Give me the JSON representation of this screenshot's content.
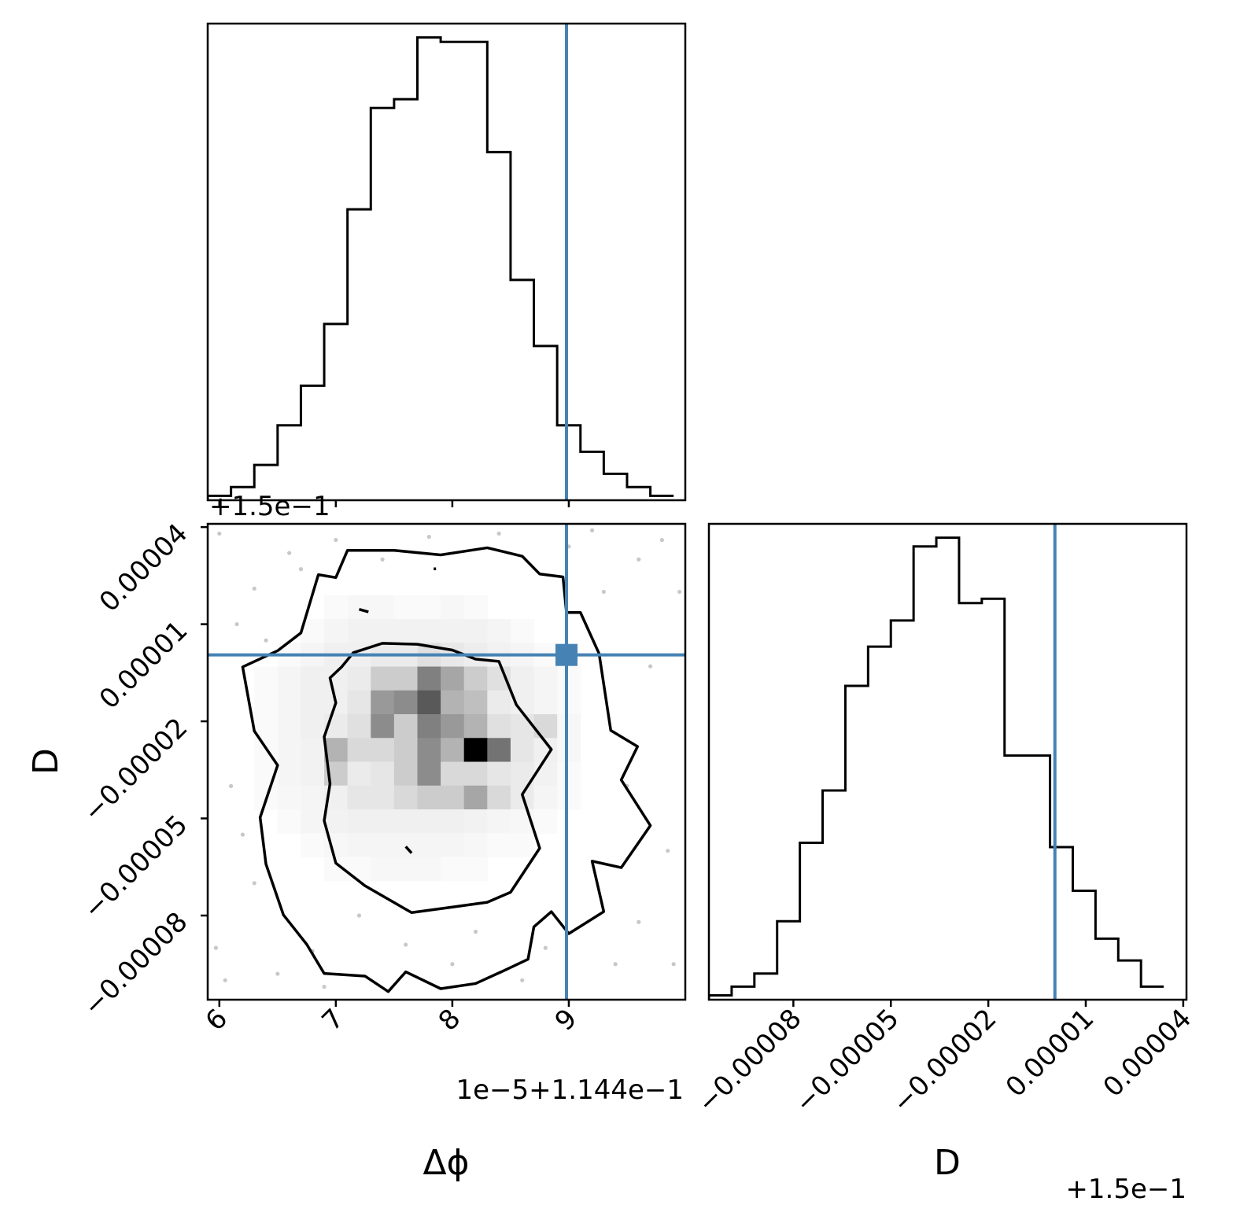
{
  "chart_data": {
    "type": "corner",
    "truth_color": "#4682b4",
    "params": [
      {
        "name": "Δϕ",
        "xlabel": "Δϕ",
        "offset_text": "1e−5+1.144e−1",
        "display_range": [
          5.9,
          10.0
        ],
        "ticks": [
          6,
          7,
          8,
          9
        ],
        "tick_labels": [
          "6",
          "7",
          "8",
          "9"
        ],
        "truth": 8.98,
        "hist_bins_left": [
          5.9,
          6.1,
          6.3,
          6.5,
          6.7,
          6.9,
          7.1,
          7.3,
          7.5,
          7.7,
          7.9,
          8.1,
          8.3,
          8.5,
          8.7,
          8.9,
          9.1,
          9.3,
          9.5,
          9.7
        ],
        "hist_values": [
          0.5,
          1.5,
          4,
          8.5,
          13,
          20,
          33,
          44.5,
          45.5,
          52.5,
          52,
          52,
          39.5,
          25,
          17.5,
          8.5,
          5.5,
          3,
          1.5,
          0.5
        ]
      },
      {
        "name": "D",
        "xlabel": "D",
        "ylabel": "D",
        "offset_text": "+1.5e−1",
        "display_range": [
          -0.000106,
          4.1e-05
        ],
        "ticks": [
          -8e-05,
          -5e-05,
          -2e-05,
          1e-05,
          4e-05
        ],
        "tick_labels": [
          "−0.00008",
          "−0.00005",
          "−0.00002",
          "0.00001",
          "0.00004"
        ],
        "truth": 5e-07,
        "hist_bins_left": [
          -0.000106,
          -9.9e-05,
          -9.2e-05,
          -8.5e-05,
          -7.8e-05,
          -7.1e-05,
          -6.4e-05,
          -5.7e-05,
          -5e-05,
          -4.3e-05,
          -3.6e-05,
          -2.9e-05,
          -2.2e-05,
          -1.5e-05,
          -8e-06,
          -1e-06,
          6e-06,
          1.3e-05,
          2e-05,
          2.7e-05
        ],
        "hist_values": [
          0.5,
          1.5,
          3,
          9,
          18,
          24,
          36,
          40.5,
          43.5,
          52,
          53,
          45.5,
          46,
          28,
          28,
          17.5,
          12.5,
          7,
          4.5,
          1.5
        ]
      }
    ],
    "joint": {
      "x_param": "Δϕ",
      "y_param": "D",
      "density_grid": {
        "x_start": 5.9,
        "x_step": 0.2,
        "y_start": -0.000106,
        "y_step": 7.35e-06,
        "rows_from_top": [
          [
            0,
            0,
            0,
            0,
            0,
            0,
            0,
            0,
            0,
            0,
            0,
            0,
            0,
            0,
            0,
            0,
            0,
            0,
            0,
            0
          ],
          [
            0,
            0,
            0,
            0,
            0,
            0,
            0,
            0,
            0,
            0,
            0,
            0,
            0,
            0,
            0,
            0,
            0,
            0,
            0,
            0
          ],
          [
            0,
            0,
            0,
            0,
            0,
            0,
            0,
            0,
            0,
            0,
            0,
            0,
            0,
            0,
            0,
            0,
            0,
            0,
            0,
            0
          ],
          [
            0,
            0,
            0,
            0,
            0,
            0.02,
            0.03,
            0.03,
            0.02,
            0.02,
            0.03,
            0.02,
            0,
            0,
            0,
            0,
            0,
            0,
            0,
            0
          ],
          [
            0,
            0,
            0,
            0,
            0.02,
            0.04,
            0.05,
            0.05,
            0.05,
            0.05,
            0.05,
            0.05,
            0.04,
            0.02,
            0,
            0,
            0,
            0,
            0,
            0
          ],
          [
            0,
            0,
            0,
            0.02,
            0.04,
            0.06,
            0.06,
            0.08,
            0.08,
            0.12,
            0.09,
            0.07,
            0.05,
            0.04,
            0.02,
            0,
            0,
            0,
            0,
            0
          ],
          [
            0,
            0,
            0.02,
            0.04,
            0.06,
            0.06,
            0.08,
            0.2,
            0.2,
            0.5,
            0.35,
            0.2,
            0.12,
            0.06,
            0.04,
            0.02,
            0,
            0,
            0,
            0
          ],
          [
            0,
            0,
            0.02,
            0.04,
            0.06,
            0.06,
            0.1,
            0.4,
            0.45,
            0.65,
            0.3,
            0.25,
            0.08,
            0.06,
            0.04,
            0.02,
            0,
            0,
            0,
            0
          ],
          [
            0,
            0,
            0.02,
            0.04,
            0.06,
            0.08,
            0.12,
            0.45,
            0.2,
            0.5,
            0.4,
            0.3,
            0.12,
            0.1,
            0.15,
            0.03,
            0,
            0,
            0,
            0
          ],
          [
            0,
            0,
            0.02,
            0.04,
            0.05,
            0.3,
            0.15,
            0.15,
            0.2,
            0.45,
            0.3,
            1.0,
            0.55,
            0.1,
            0.06,
            0.03,
            0,
            0,
            0,
            0
          ],
          [
            0,
            0,
            0.02,
            0.04,
            0.05,
            0.2,
            0.08,
            0.1,
            0.2,
            0.45,
            0.15,
            0.15,
            0.1,
            0.08,
            0.05,
            0.02,
            0,
            0,
            0,
            0
          ],
          [
            0,
            0,
            0.02,
            0.03,
            0.04,
            0.06,
            0.1,
            0.1,
            0.15,
            0.2,
            0.2,
            0.35,
            0.15,
            0.08,
            0.04,
            0.02,
            0,
            0,
            0,
            0
          ],
          [
            0,
            0,
            0,
            0.02,
            0.04,
            0.05,
            0.06,
            0.06,
            0.06,
            0.06,
            0.06,
            0.05,
            0.04,
            0.03,
            0.02,
            0,
            0,
            0,
            0,
            0
          ],
          [
            0,
            0,
            0,
            0,
            0.02,
            0.03,
            0.04,
            0.04,
            0.04,
            0.04,
            0.04,
            0.03,
            0.02,
            0.02,
            0,
            0,
            0,
            0,
            0,
            0
          ],
          [
            0,
            0,
            0,
            0,
            0,
            0.02,
            0.02,
            0.03,
            0.03,
            0.03,
            0.02,
            0.02,
            0,
            0,
            0,
            0,
            0,
            0,
            0,
            0
          ],
          [
            0,
            0,
            0,
            0,
            0,
            0,
            0,
            0,
            0,
            0,
            0,
            0,
            0,
            0,
            0,
            0,
            0,
            0,
            0,
            0
          ],
          [
            0,
            0,
            0,
            0,
            0,
            0,
            0,
            0,
            0,
            0,
            0,
            0,
            0,
            0,
            0,
            0,
            0,
            0,
            0,
            0
          ],
          [
            0,
            0,
            0,
            0,
            0,
            0,
            0,
            0,
            0,
            0,
            0,
            0,
            0,
            0,
            0,
            0,
            0,
            0,
            0,
            0
          ],
          [
            0,
            0,
            0,
            0,
            0,
            0,
            0,
            0,
            0,
            0,
            0,
            0,
            0,
            0,
            0,
            0,
            0,
            0,
            0,
            0
          ],
          [
            0,
            0,
            0,
            0,
            0,
            0,
            0,
            0,
            0,
            0,
            0,
            0,
            0,
            0,
            0,
            0,
            0,
            0,
            0,
            0
          ]
        ]
      },
      "contours": [
        [
          [
            7.1,
            3.28e-05
          ],
          [
            7.5,
            3.28e-05
          ],
          [
            7.9,
            3.14e-05
          ],
          [
            8.3,
            3.36e-05
          ],
          [
            8.6,
            3.1e-05
          ],
          [
            8.75,
            2.55e-05
          ],
          [
            8.95,
            2.46e-05
          ],
          [
            8.98,
            1.36e-05
          ],
          [
            9.1,
            1.36e-05
          ],
          [
            9.26,
            9e-07
          ],
          [
            9.36,
            -2.28e-05
          ],
          [
            9.59,
            -2.78e-05
          ],
          [
            9.45,
            -3.81e-05
          ],
          [
            9.7,
            -5.22e-05
          ],
          [
            9.45,
            -6.52e-05
          ],
          [
            9.2,
            -6.32e-05
          ],
          [
            9.3,
            -7.88e-05
          ],
          [
            9.0,
            -8.56e-05
          ],
          [
            8.85,
            -7.88e-05
          ],
          [
            8.7,
            -8.35e-05
          ],
          [
            8.65,
            -9.35e-05
          ],
          [
            8.45,
            -9.69e-05
          ],
          [
            8.2,
            -0.000101
          ],
          [
            7.9,
            -0.0001026
          ],
          [
            7.6,
            -9.74e-05
          ],
          [
            7.45,
            -0.0001035
          ],
          [
            7.25,
            -9.87e-05
          ],
          [
            6.9,
            -9.79e-05
          ],
          [
            6.75,
            -8.89e-05
          ],
          [
            6.55,
            -7.98e-05
          ],
          [
            6.4,
            -6.41e-05
          ],
          [
            6.35,
            -4.97e-05
          ],
          [
            6.5,
            -3.36e-05
          ],
          [
            6.3,
            -2.3e-05
          ],
          [
            6.2,
            -3.2e-06
          ],
          [
            6.5,
            1.8e-06
          ],
          [
            6.7,
            7.3e-06
          ],
          [
            6.85,
            2.53e-05
          ],
          [
            7.0,
            2.44e-05
          ]
        ],
        [
          [
            7.15,
            1.2e-06
          ],
          [
            7.4,
            4.1e-06
          ],
          [
            7.7,
            3.8e-06
          ],
          [
            8.0,
            2e-06
          ],
          [
            8.2,
            -8e-07
          ],
          [
            8.4,
            -1.5e-06
          ],
          [
            8.55,
            -1.49e-05
          ],
          [
            8.85,
            -2.87e-05
          ],
          [
            8.6,
            -4.26e-05
          ],
          [
            8.75,
            -5.92e-05
          ],
          [
            8.5,
            -7.28e-05
          ],
          [
            8.3,
            -7.59e-05
          ],
          [
            8.0,
            -7.74e-05
          ],
          [
            7.65,
            -7.91e-05
          ],
          [
            7.25,
            -7.08e-05
          ],
          [
            7.0,
            -6.38e-05
          ],
          [
            6.9,
            -5.07e-05
          ],
          [
            6.95,
            -3.93e-05
          ],
          [
            6.9,
            -2.48e-05
          ],
          [
            7.0,
            -1.43e-05
          ],
          [
            6.95,
            -6.6e-06
          ],
          [
            7.05,
            -3.2e-06
          ]
        ],
        [
          [
            7.2,
            1.46e-05
          ],
          [
            7.28,
            1.38e-05
          ]
        ],
        [
          [
            7.84,
            2.71e-05
          ],
          [
            7.86,
            2.71e-05
          ]
        ],
        [
          [
            7.6,
            -5.87e-05
          ],
          [
            7.65,
            -6.07e-05
          ]
        ]
      ],
      "scatter_points": [
        [
          6.0,
          3.8e-05
        ],
        [
          6.3,
          2.1e-05
        ],
        [
          5.97,
          -9e-05
        ],
        [
          6.5,
          -9.8e-05
        ],
        [
          6.8,
          -9.1e-05
        ],
        [
          7.2,
          -8e-05
        ],
        [
          7.6,
          -8.9e-05
        ],
        [
          8.2,
          -8.5e-05
        ],
        [
          8.8,
          -9e-05
        ],
        [
          9.6,
          -8.2e-05
        ],
        [
          9.9,
          -9.5e-05
        ],
        [
          9.7,
          -3e-06
        ],
        [
          9.95,
          2e-05
        ],
        [
          9.6,
          3e-05
        ],
        [
          9.2,
          3.9e-05
        ],
        [
          8.4,
          3.8e-05
        ],
        [
          7.8,
          3.7e-05
        ],
        [
          7.0,
          3.6e-05
        ],
        [
          6.6,
          3.2e-05
        ],
        [
          6.1,
          -4e-05
        ],
        [
          6.15,
          1e-05
        ],
        [
          9.85,
          -6e-05
        ],
        [
          9.4,
          -9.5e-05
        ],
        [
          6.3,
          -7e-05
        ],
        [
          6.05,
          -0.0001
        ],
        [
          9.8,
          3.6e-05
        ],
        [
          8.0,
          -9.5e-05
        ],
        [
          7.4,
          3e-05
        ],
        [
          6.9,
          -0.000102
        ],
        [
          9.3,
          2e-05
        ],
        [
          6.4,
          5e-06
        ],
        [
          9.0,
          3.4e-05
        ],
        [
          6.2,
          -5.5e-05
        ],
        [
          9.5,
          -4e-05
        ],
        [
          6.7,
          2.7e-05
        ],
        [
          8.6,
          -0.0001
        ]
      ]
    }
  }
}
